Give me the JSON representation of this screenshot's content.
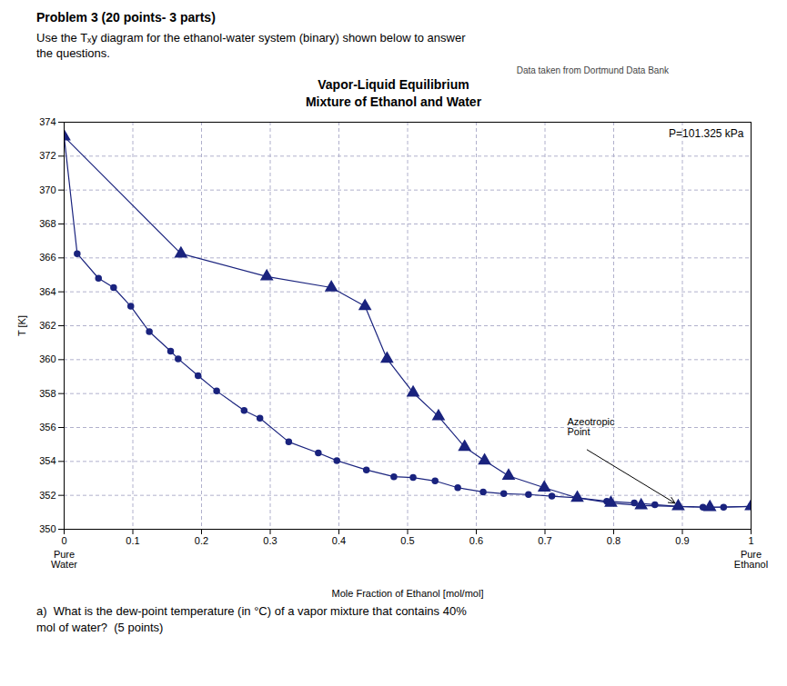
{
  "chart_data": {
    "type": "line",
    "header": [
      "Problem 3 (20 points- 3 parts)",
      "Use the Tₓy diagram for the ethanol-water system (binary) shown below to answer\nthe questions."
    ],
    "title": "Vapor-Liquid Equilibrium\nMixture of Ethanol and Water",
    "subtitle": "Data taken from Dortmund Data Bank",
    "xlabel": "Mole Fraction of Ethanol [mol/mol]",
    "ylabel": "T [K]",
    "caption": "a)  What is the dew-point temperature (in °C) of a vapor mixture that contains 40%\nmol of water?  (5 points)",
    "xlim": [
      0,
      1
    ],
    "ylim": [
      350,
      374
    ],
    "xticks": [
      0,
      0.1,
      0.2,
      0.3,
      0.4,
      0.5,
      0.6,
      0.7,
      0.8,
      0.9,
      1
    ],
    "yticks": [
      350,
      352,
      354,
      356,
      358,
      360,
      362,
      364,
      366,
      368,
      370,
      372,
      374
    ],
    "grid": true,
    "series": [
      {
        "color": "#1a237e",
        "marker": "circle",
        "x": [
          0.0,
          0.019,
          0.05,
          0.072,
          0.097,
          0.124,
          0.155,
          0.166,
          0.195,
          0.222,
          0.262,
          0.285,
          0.327,
          0.37,
          0.397,
          0.44,
          0.48,
          0.508,
          0.54,
          0.573,
          0.61,
          0.64,
          0.676,
          0.71,
          0.747,
          0.79,
          0.83,
          0.86,
          0.894,
          0.93,
          0.96,
          1.0
        ],
        "values": [
          373.15,
          366.25,
          364.8,
          364.25,
          363.15,
          361.65,
          360.5,
          360.05,
          359.05,
          358.15,
          357.0,
          356.55,
          355.15,
          354.5,
          354.05,
          353.5,
          353.1,
          353.05,
          352.85,
          352.45,
          352.2,
          352.1,
          352.05,
          351.95,
          351.85,
          351.65,
          351.55,
          351.45,
          351.35,
          351.3,
          351.3,
          351.35
        ]
      },
      {
        "color": "#1a237e",
        "marker": "triangle",
        "x": [
          0.0,
          0.17,
          0.295,
          0.389,
          0.438,
          0.47,
          0.508,
          0.545,
          0.583,
          0.612,
          0.647,
          0.699,
          0.747,
          0.796,
          0.84,
          0.894,
          0.94,
          1.0
        ],
        "values": [
          373.15,
          366.25,
          364.9,
          364.25,
          363.15,
          360.05,
          358.05,
          356.65,
          354.85,
          354.05,
          353.15,
          352.45,
          351.85,
          351.55,
          351.4,
          351.35,
          351.3,
          351.35
        ]
      }
    ],
    "annotations": [
      {
        "text": "P=101.325 kPa"
      },
      {
        "text": "Azeotropic\nPoint",
        "x": 0.894,
        "y": 351.35
      },
      {
        "text": "Pure\nWater",
        "x": 0
      },
      {
        "text": "Pure\nEthanol",
        "x": 1
      }
    ]
  }
}
